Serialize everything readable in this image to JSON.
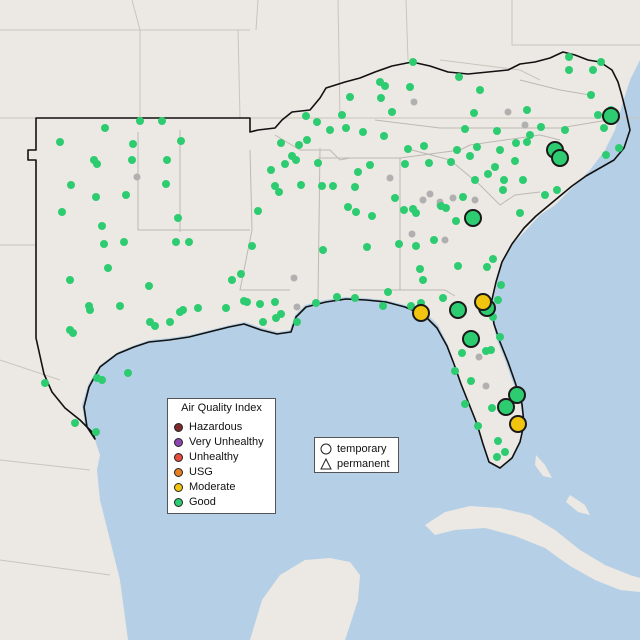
{
  "legend": {
    "title": "Air Quality Index",
    "items": [
      {
        "label": "Hazardous",
        "color": "#7e2a2a"
      },
      {
        "label": "Very Unhealthy",
        "color": "#8e44ad"
      },
      {
        "label": "Unhealthy",
        "color": "#e74c3c"
      },
      {
        "label": "USG",
        "color": "#e67e22"
      },
      {
        "label": "Moderate",
        "color": "#f1c40f"
      },
      {
        "label": "Good",
        "color": "#2ecc71"
      }
    ]
  },
  "monitor_types": {
    "items": [
      {
        "label": "temporary",
        "symbol": "circle"
      },
      {
        "label": "permanent",
        "symbol": "triangle"
      }
    ]
  },
  "colors": {
    "water": "#b5d0e6",
    "land": "#ece8e3",
    "region_border": "#111111",
    "state_lines": "#c9c4be",
    "no_data_monitor": "#b0b0b0"
  }
}
